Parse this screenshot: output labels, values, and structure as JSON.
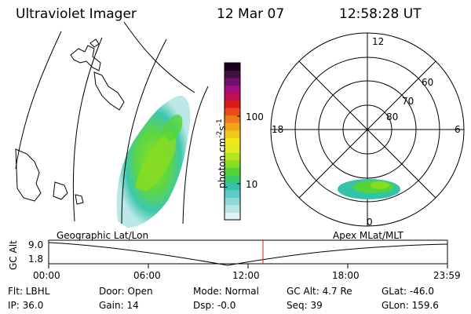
{
  "header": {
    "instrument": "Ultraviolet Imager",
    "date": "12 Mar 07",
    "time": "12:58:28 UT"
  },
  "colorbar": {
    "unit_label": "photon cm",
    "unit_exp1": "-2",
    "unit_mid": "s",
    "unit_exp2": "-1",
    "tick_high": "100",
    "tick_low": "10",
    "colors": [
      "#dff3f3",
      "#b8e6e6",
      "#8fd8d8",
      "#5fcccc",
      "#33c4a8",
      "#38cc6e",
      "#55d438",
      "#88dc22",
      "#b4e41e",
      "#dcec1c",
      "#f0e81a",
      "#f0c81a",
      "#f0a41a",
      "#f07a1a",
      "#e84a1a",
      "#d81a1a",
      "#c01050",
      "#a01080",
      "#701070",
      "#401040",
      "#180018"
    ]
  },
  "polar": {
    "label_top": "12",
    "label_left": "18",
    "label_right": "6",
    "label_bottom": "0",
    "lat_60": "60",
    "lat_70": "70",
    "lat_80": "80"
  },
  "labels": {
    "geo": "Geographic Lat/Lon",
    "apex": "Apex MLat/MLT",
    "gc_alt_axis": "GC Alt",
    "alt_top": "9.0",
    "alt_bottom": "1.8"
  },
  "timeline": {
    "ticks": [
      "00:00",
      "06:00",
      "12:00",
      "18:00",
      "23:59"
    ]
  },
  "info": {
    "filter": "Flt: LBHL",
    "ip": "IP: 36.0",
    "door": "Door: Open",
    "gain": "Gain: 14",
    "mode": "Mode: Normal",
    "dsp": "Dsp:    -0.0",
    "gc_alt": "GC Alt: 4.7 Re",
    "seq": "Seq: 39",
    "glat": "GLat: -46.0",
    "glon": "GLon: 159.6"
  }
}
